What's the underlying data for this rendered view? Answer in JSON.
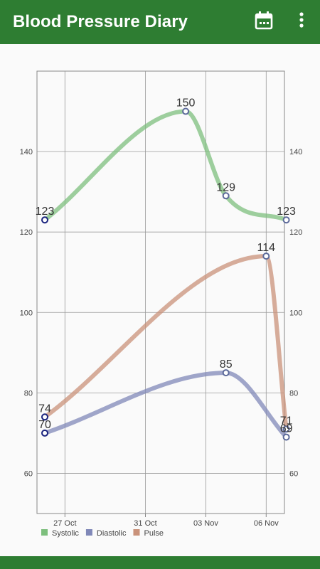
{
  "app_bar": {
    "title": "Blood Pressure Diary",
    "icons": [
      "calendar-icon",
      "more-vert-icon"
    ],
    "background": "#2e7d32"
  },
  "chart_data": {
    "type": "line",
    "y_ticks": [
      60,
      80,
      100,
      120,
      140
    ],
    "ylim": [
      50,
      160
    ],
    "x_ticks": [
      "27 Oct",
      "31 Oct",
      "03 Nov",
      "06 Nov"
    ],
    "legend_position": "bottom-left",
    "grid": true,
    "series": [
      {
        "name": "Systolic",
        "color": "#7dbf7d",
        "points": [
          {
            "x": "26 Oct",
            "y": 123,
            "label": "123"
          },
          {
            "x": "02 Nov",
            "y": 150,
            "label": "150"
          },
          {
            "x": "04 Nov",
            "y": 129,
            "label": "129"
          },
          {
            "x": "07 Nov",
            "y": 123,
            "label": "123"
          }
        ]
      },
      {
        "name": "Diastolic",
        "color": "#8088b8",
        "points": [
          {
            "x": "26 Oct",
            "y": 70,
            "label": "70"
          },
          {
            "x": "04 Nov",
            "y": 85,
            "label": "85"
          },
          {
            "x": "07 Nov",
            "y": 69,
            "label": "69"
          }
        ]
      },
      {
        "name": "Pulse",
        "color": "#c9927a",
        "points": [
          {
            "x": "26 Oct",
            "y": 74,
            "label": "74"
          },
          {
            "x": "06 Nov",
            "y": 114,
            "label": "114"
          },
          {
            "x": "07 Nov",
            "y": 71,
            "label": "71"
          }
        ]
      }
    ]
  }
}
